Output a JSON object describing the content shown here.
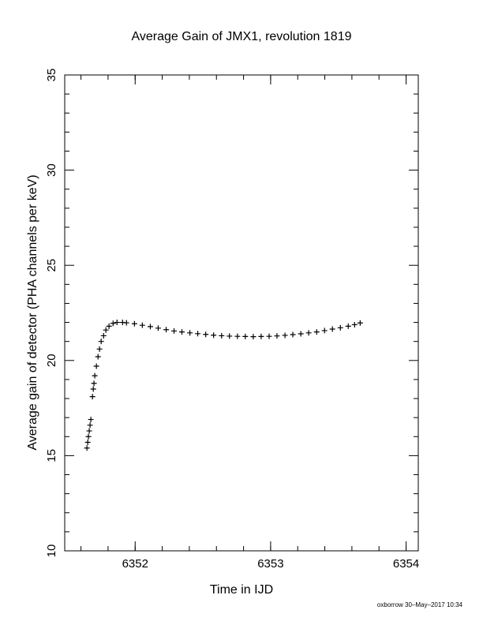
{
  "chart_data": {
    "type": "scatter",
    "title": "Average Gain of JMX1, revolution 1819",
    "x_label": "Time in IJD",
    "y_label": "Average gain of detector (PHA channels per keV)",
    "footer": "oxborrow 30–May–2017 10:34",
    "xlim": [
      6351.48,
      6354.09
    ],
    "ylim": [
      10,
      35
    ],
    "xticks": [
      6352,
      6353,
      6354
    ],
    "yticks": [
      10,
      15,
      20,
      25,
      30,
      35
    ],
    "color": "#000000",
    "x": [
      6351.644,
      6351.65,
      6351.655,
      6351.661,
      6351.667,
      6351.673,
      6351.685,
      6351.691,
      6351.696,
      6351.702,
      6351.714,
      6351.726,
      6351.737,
      6351.749,
      6351.767,
      6351.784,
      6351.807,
      6351.837,
      6351.866,
      6351.907,
      6351.936,
      6351.995,
      6352.053,
      6352.112,
      6352.17,
      6352.229,
      6352.287,
      6352.345,
      6352.404,
      6352.462,
      6352.521,
      6352.579,
      6352.638,
      6352.696,
      6352.755,
      6352.813,
      6352.872,
      6352.93,
      6352.989,
      6353.047,
      6353.106,
      6353.164,
      6353.223,
      6353.281,
      6353.34,
      6353.398,
      6353.456,
      6353.515,
      6353.573,
      6353.62,
      6353.661
    ],
    "values": [
      15.4,
      15.7,
      16.0,
      16.3,
      16.6,
      16.9,
      18.1,
      18.5,
      18.8,
      19.2,
      19.7,
      20.2,
      20.6,
      21.0,
      21.3,
      21.6,
      21.8,
      21.95,
      22.0,
      22.0,
      21.98,
      21.93,
      21.85,
      21.78,
      21.7,
      21.62,
      21.55,
      21.5,
      21.45,
      21.41,
      21.37,
      21.33,
      21.3,
      21.28,
      21.27,
      21.26,
      21.25,
      21.26,
      21.27,
      21.29,
      21.32,
      21.36,
      21.4,
      21.45,
      21.5,
      21.57,
      21.65,
      21.72,
      21.8,
      21.88,
      21.97
    ]
  }
}
